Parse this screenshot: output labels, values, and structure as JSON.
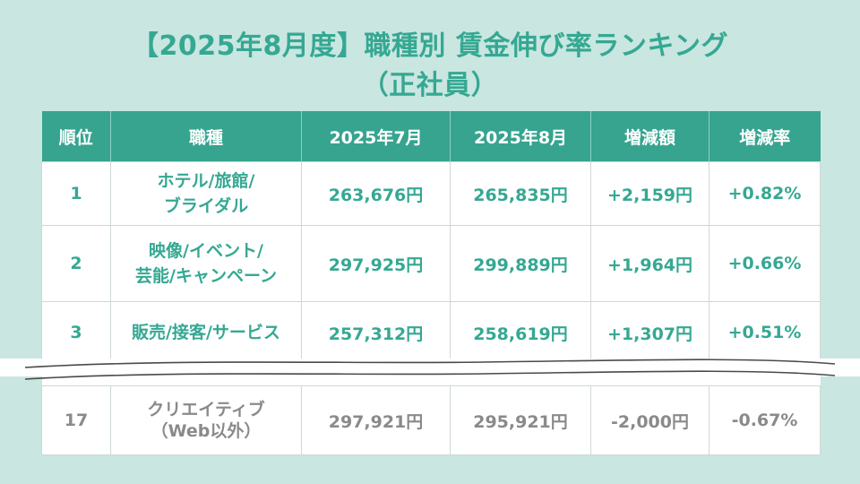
{
  "title": {
    "line1": "【2025年8月度】職種別 賃金伸び率ランキング",
    "line2": "（正社員）"
  },
  "table": {
    "headers": [
      "順位",
      "職種",
      "2025年7月",
      "2025年8月",
      "増減額",
      "増減率"
    ],
    "rows": [
      {
        "rank": "1",
        "occupation_line1": "ホテル/旅館/",
        "occupation_line2": "ブライダル",
        "jul": "263,676円",
        "aug": "265,835円",
        "diff": "+2,159円",
        "rate": "+0.82%"
      },
      {
        "rank": "2",
        "occupation_line1": "映像/イベント/",
        "occupation_line2": "芸能/キャンペーン",
        "jul": "297,925円",
        "aug": "299,889円",
        "diff": "+1,964円",
        "rate": "+0.66%"
      },
      {
        "rank": "3",
        "occupation_line1": "販売/接客/サービス",
        "occupation_line2": "",
        "jul": "257,312円",
        "aug": "258,619円",
        "diff": "+1,307円",
        "rate": "+0.51%"
      },
      {
        "rank": "17",
        "occupation_line1": "クリエイティブ",
        "occupation_line2": "（Web以外）",
        "jul": "297,921円",
        "aug": "295,921円",
        "diff": "-2,000円",
        "rate": "-0.67%"
      }
    ]
  },
  "colors": {
    "accent": "#35a892",
    "header_bg": "#36a48f",
    "background": "#c9e6e1",
    "muted": "#8a8a8a"
  }
}
